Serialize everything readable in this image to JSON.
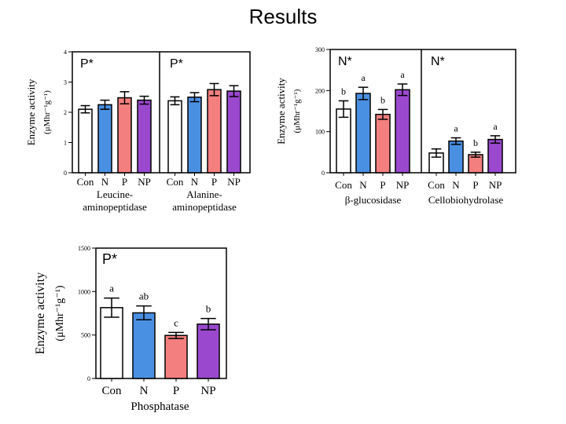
{
  "title": "Results",
  "colors": {
    "Con": "#ffffff",
    "N": "#4a90e2",
    "P": "#f47f7f",
    "NP": "#9a49cf"
  },
  "chart_data": [
    {
      "type": "bar",
      "ylabel": "Enzyme activity",
      "yunit": "(μMhr⁻¹g⁻¹)",
      "ylim": [
        0,
        4
      ],
      "yticks": [
        0,
        1,
        2,
        3,
        4
      ],
      "categories": [
        "Con",
        "N",
        "P",
        "NP"
      ],
      "groups": [
        {
          "name": "Leucine-aminopeptidase",
          "name_lines": [
            "Leucine-",
            "aminopeptidase"
          ],
          "annotation": "P*",
          "values": [
            2.1,
            2.25,
            2.48,
            2.4
          ],
          "errors": [
            0.12,
            0.15,
            0.2,
            0.13
          ],
          "letters": [
            "",
            "",
            "",
            ""
          ]
        },
        {
          "name": "Alanine-aminopeptidase",
          "name_lines": [
            "Alanine-",
            "aminopeptidase"
          ],
          "annotation": "P*",
          "values": [
            2.38,
            2.5,
            2.75,
            2.7
          ],
          "errors": [
            0.13,
            0.15,
            0.2,
            0.18
          ],
          "letters": [
            "",
            "",
            "",
            ""
          ]
        }
      ]
    },
    {
      "type": "bar",
      "ylabel": "Enzyme activity",
      "yunit": "(μMhr⁻¹g⁻¹)",
      "ylim": [
        0,
        300
      ],
      "yticks": [
        0,
        100,
        200,
        300
      ],
      "categories": [
        "Con",
        "N",
        "P",
        "NP"
      ],
      "groups": [
        {
          "name": "β-glucosidase",
          "name_lines": [
            "β-glucosidase"
          ],
          "annotation": "N*",
          "values": [
            155,
            193,
            142,
            202
          ],
          "errors": [
            20,
            15,
            12,
            14
          ],
          "letters": [
            "b",
            "a",
            "b",
            "a"
          ]
        },
        {
          "name": "Cellobiohydrolase",
          "name_lines": [
            "Cellobiohydrolase"
          ],
          "annotation": "N*",
          "values": [
            48,
            77,
            44,
            81
          ],
          "errors": [
            10,
            8,
            6,
            9
          ],
          "letters": [
            "",
            "a",
            "b",
            "a"
          ]
        }
      ]
    },
    {
      "type": "bar",
      "ylabel": "Enzyme activity",
      "yunit": "(μMhr⁻¹g⁻¹)",
      "ylim": [
        0,
        1500
      ],
      "yticks": [
        0,
        500,
        1000,
        1500
      ],
      "categories": [
        "Con",
        "N",
        "P",
        "NP"
      ],
      "groups": [
        {
          "name": "Phosphatase",
          "name_lines": [
            "Phosphatase"
          ],
          "annotation": "P*",
          "values": [
            815,
            755,
            495,
            625
          ],
          "errors": [
            110,
            80,
            35,
            65
          ],
          "letters": [
            "a",
            "ab",
            "c",
            "b"
          ]
        }
      ]
    }
  ]
}
